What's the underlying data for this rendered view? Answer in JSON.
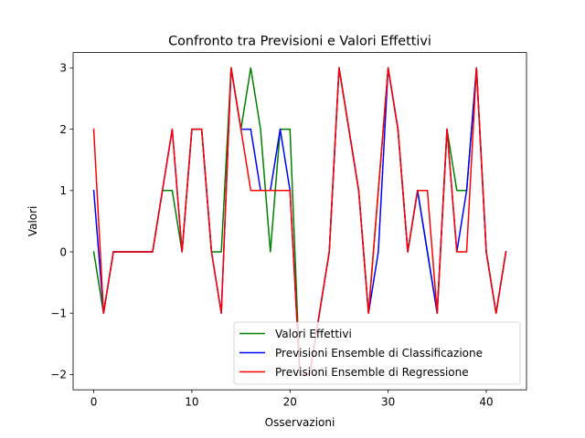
{
  "chart_data": {
    "type": "line",
    "title": "Confronto tra Previsioni e Valori Effettivi",
    "xlabel": "Osservazioni",
    "ylabel": "Valori",
    "xlim": [
      -2.1,
      44.1
    ],
    "ylim": [
      -2.25,
      3.25
    ],
    "xticks": [
      0,
      10,
      20,
      30,
      40
    ],
    "yticks": [
      -2,
      -1,
      0,
      1,
      2,
      3
    ],
    "grid": false,
    "legend_position": "lower right",
    "x": [
      0,
      1,
      2,
      3,
      4,
      5,
      6,
      7,
      8,
      9,
      10,
      11,
      12,
      13,
      14,
      15,
      16,
      17,
      18,
      19,
      20,
      21,
      22,
      23,
      24,
      25,
      26,
      27,
      28,
      29,
      30,
      31,
      32,
      33,
      34,
      35,
      36,
      37,
      38,
      39,
      40,
      41,
      42
    ],
    "series": [
      {
        "name": "Valori Effettivi",
        "color": "#008000",
        "values": [
          0,
          -1,
          0,
          0,
          0,
          0,
          0,
          1,
          1,
          0,
          2,
          2,
          0,
          0,
          3,
          2,
          3,
          2,
          0,
          2,
          2,
          -2,
          -2,
          -1,
          0,
          3,
          2,
          1,
          -1,
          1,
          3,
          2,
          0,
          1,
          0,
          -1,
          2,
          1,
          1,
          3,
          0,
          -1,
          0
        ]
      },
      {
        "name": "Previsioni Ensemble di Classificazione",
        "color": "#0000ff",
        "values": [
          1,
          -1,
          0,
          0,
          0,
          0,
          0,
          1,
          2,
          0,
          2,
          2,
          0,
          -1,
          3,
          2,
          2,
          1,
          1,
          2,
          1,
          -2,
          -2,
          -1,
          0,
          3,
          2,
          1,
          -1,
          0,
          3,
          2,
          0,
          1,
          0,
          -1,
          2,
          0,
          1,
          3,
          0,
          -1,
          0
        ]
      },
      {
        "name": "Previsioni Ensemble di Regressione",
        "color": "#ff0000",
        "values": [
          2,
          -1,
          0,
          0,
          0,
          0,
          0,
          1,
          2,
          0,
          2,
          2,
          0,
          -1,
          3,
          2,
          1,
          1,
          1,
          1,
          1,
          -2,
          -2,
          -1,
          0,
          3,
          2,
          1,
          -1,
          1,
          3,
          2,
          0,
          1,
          1,
          -1,
          2,
          0,
          0,
          3,
          0,
          -1,
          0
        ]
      }
    ]
  }
}
